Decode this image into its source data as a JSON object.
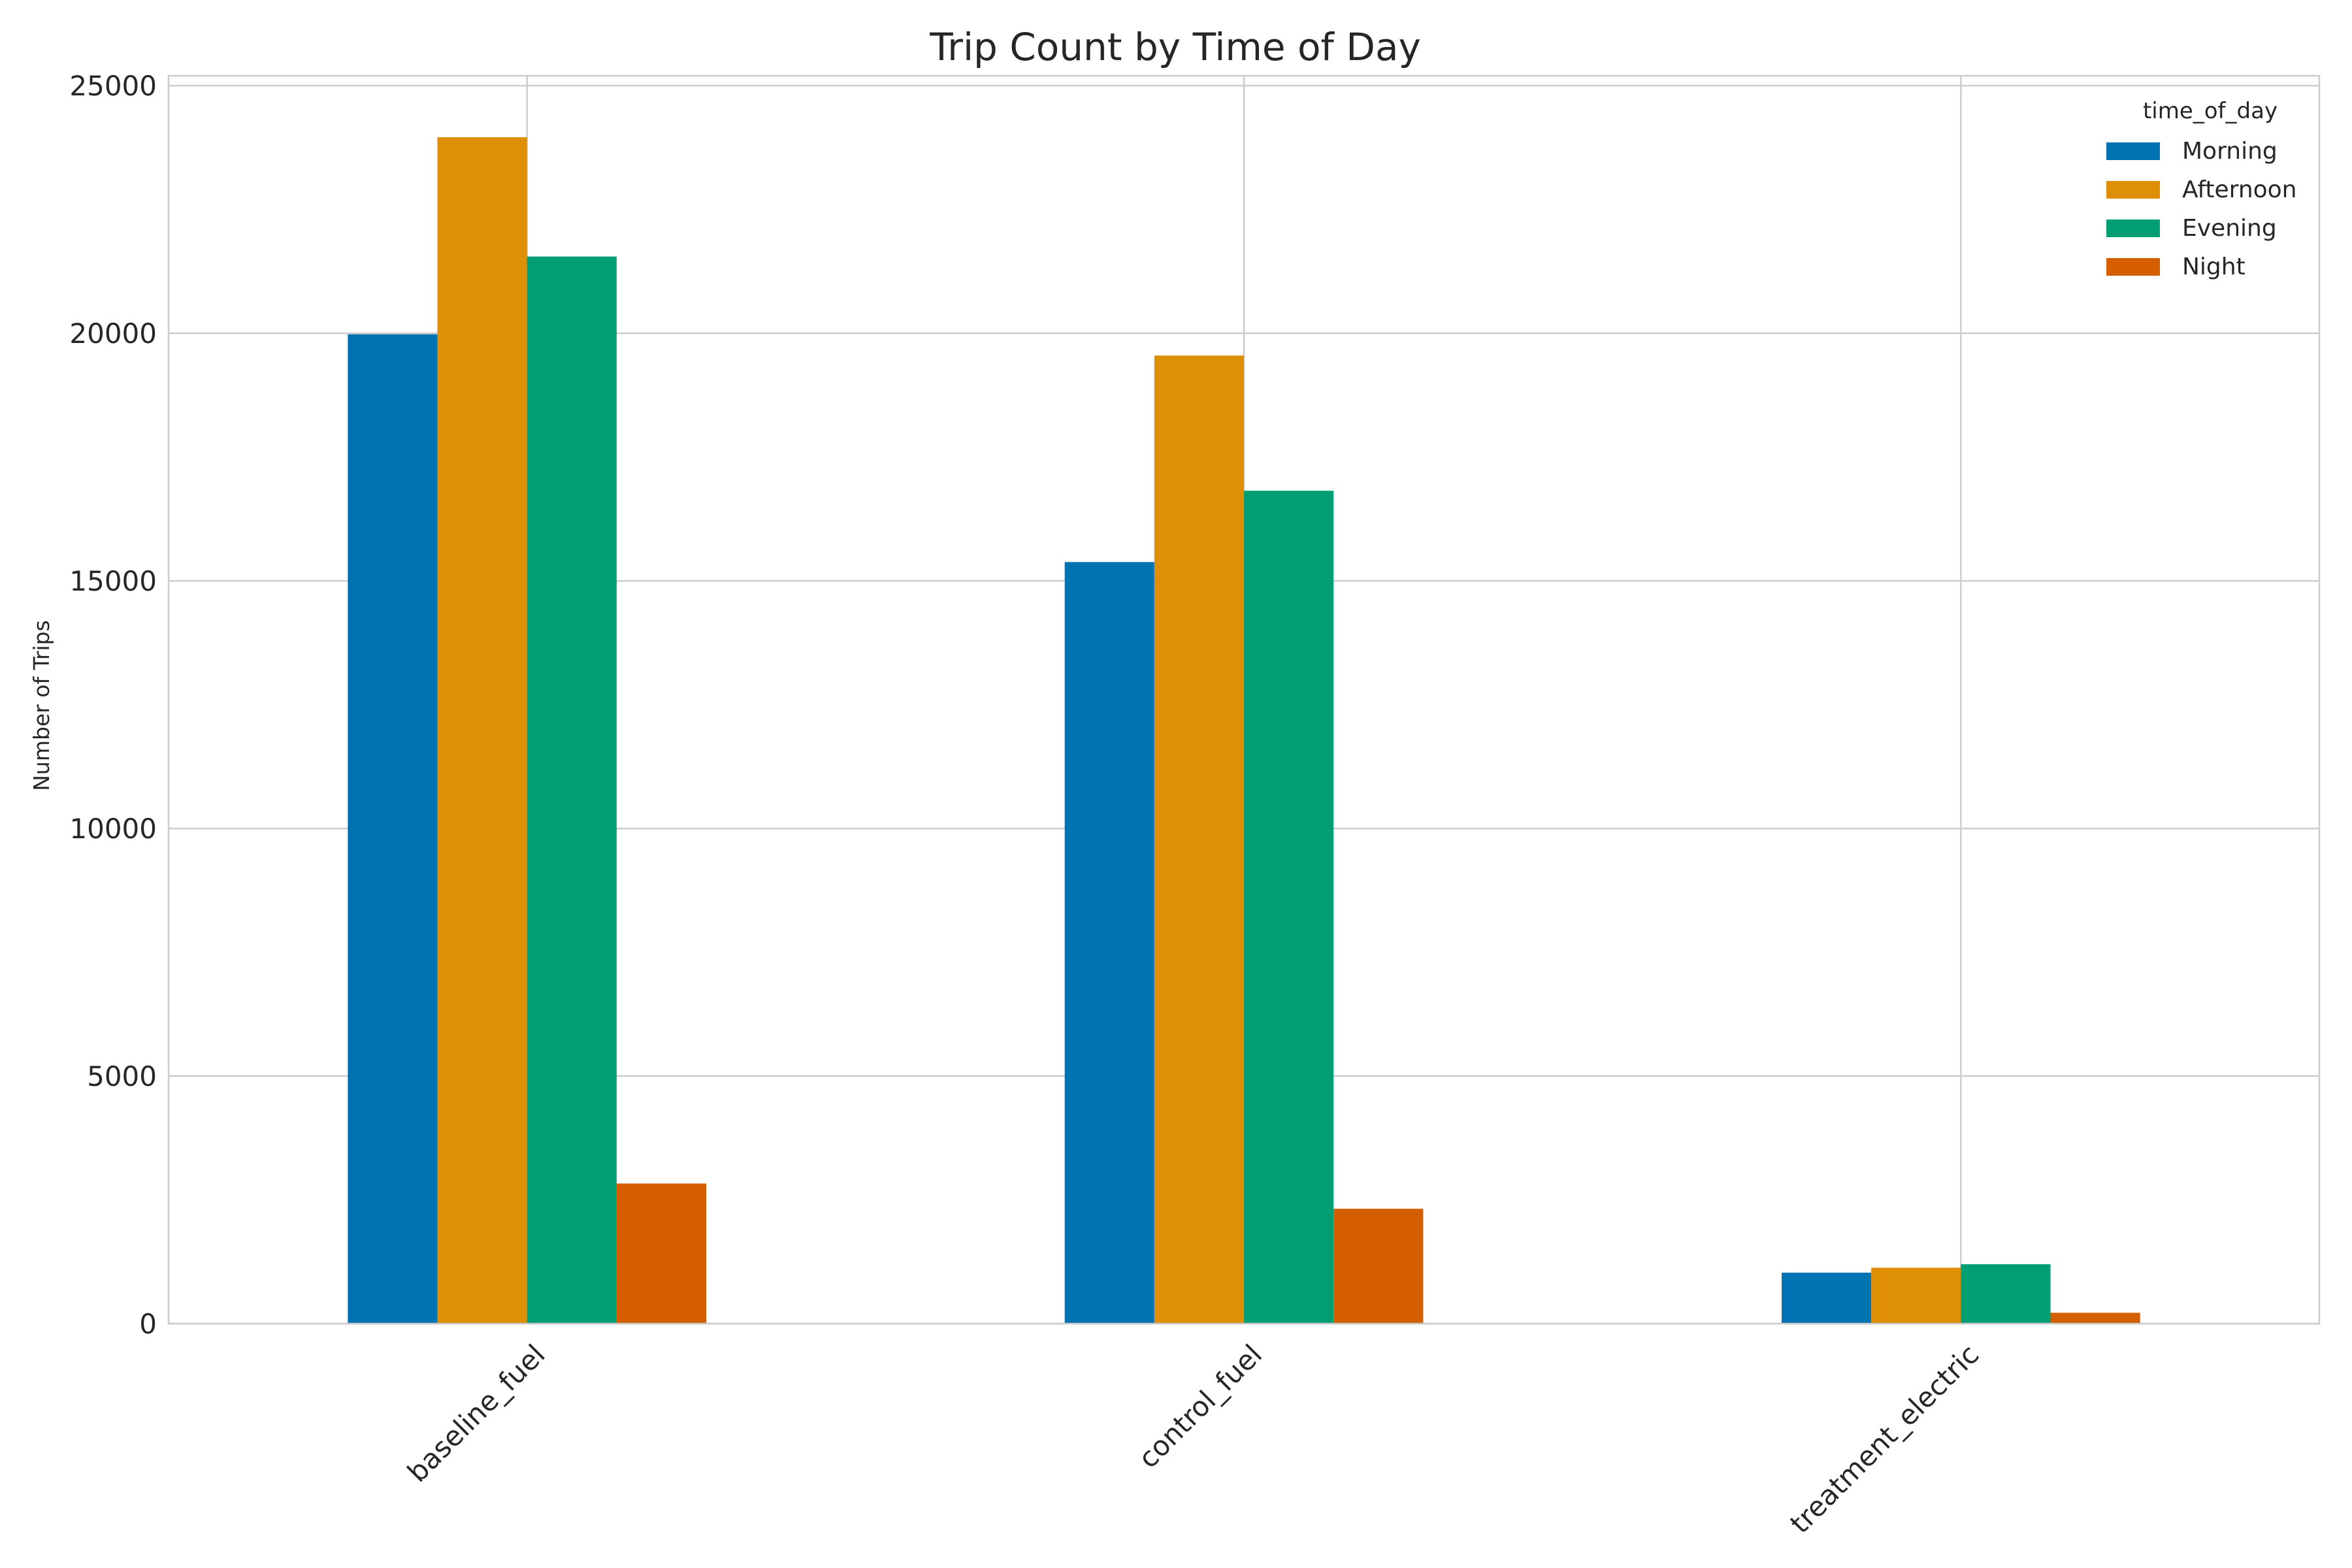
{
  "chart_data": {
    "type": "bar",
    "title": "Trip Count by Time of Day",
    "xlabel": "",
    "ylabel": "Number of Trips",
    "categories": [
      "baseline_fuel",
      "control_fuel",
      "treatment_electric"
    ],
    "series": [
      {
        "name": "Morning",
        "color": "#0173b2",
        "values": [
          19980,
          15380,
          1030
        ]
      },
      {
        "name": "Afternoon",
        "color": "#de8f05",
        "values": [
          23960,
          19550,
          1130
        ]
      },
      {
        "name": "Evening",
        "color": "#029e73",
        "values": [
          21550,
          16820,
          1200
        ]
      },
      {
        "name": "Night",
        "color": "#d55e00",
        "values": [
          2830,
          2320,
          220
        ]
      }
    ],
    "ylim": [
      0,
      25200
    ],
    "yticks": [
      0,
      5000,
      10000,
      15000,
      20000,
      25000
    ],
    "ytick_labels": [
      "0",
      "5000",
      "10000",
      "15000",
      "20000",
      "25000"
    ],
    "grid": true,
    "legend": {
      "title": "time_of_day",
      "placement": "top-right"
    }
  }
}
